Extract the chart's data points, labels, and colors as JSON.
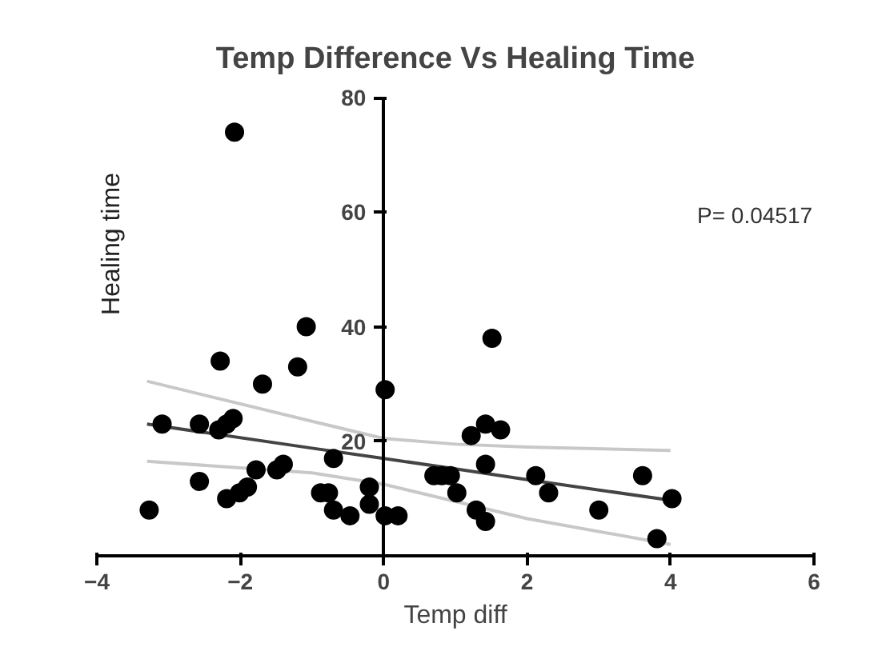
{
  "chart_data": {
    "type": "scatter",
    "title": "Temp Difference Vs Healing Time",
    "xlabel": "Temp diff",
    "ylabel": "Healing time",
    "annotations": [
      "P= 0.04517"
    ],
    "xlim": [
      -4,
      6
    ],
    "xticks": [
      -4,
      -2,
      0,
      2,
      4,
      6
    ],
    "ylim": [
      0,
      80
    ],
    "yticks": [
      20,
      40,
      60,
      80
    ],
    "grid": false,
    "series": [
      {
        "type": "scatter",
        "marker": "circle",
        "color": "#000000",
        "x": [
          -3.27,
          -3.09,
          -2.57,
          -2.57,
          -2.28,
          -2.3,
          -2.19,
          -2.1,
          -2.08,
          -2.19,
          -2.01,
          -1.9,
          -1.78,
          -1.69,
          -1.49,
          -1.4,
          -1.2,
          -1.08,
          -0.88,
          -0.77,
          -0.7,
          -0.7,
          -0.47,
          -0.2,
          -0.2,
          0.02,
          0.02,
          0.2,
          0.7,
          0.81,
          0.93,
          1.02,
          1.22,
          1.42,
          1.63,
          1.42,
          1.29,
          1.42,
          1.51,
          2.12,
          2.3,
          3.0,
          3.61,
          4.02,
          3.81
        ],
        "values": [
          8,
          23,
          23,
          13,
          34,
          22,
          23,
          24,
          74,
          10,
          11,
          12,
          15,
          30,
          15,
          16,
          33,
          40,
          11,
          11,
          17,
          8,
          7,
          12,
          9,
          29,
          7,
          7,
          14,
          14,
          14,
          11,
          21,
          23,
          22,
          16,
          8,
          6,
          38,
          14,
          11,
          8,
          14,
          10,
          3
        ]
      },
      {
        "type": "line",
        "color": "#444444",
        "x": [
          -3.3,
          -1,
          0,
          1,
          2,
          4
        ],
        "values": [
          23,
          18.8,
          17,
          15.2,
          13.3,
          9.7
        ]
      },
      {
        "type": "line",
        "color": "#c8c8c8",
        "x": [
          -3.3,
          -1,
          0,
          1,
          2,
          4
        ],
        "values": [
          30.5,
          23.5,
          20.5,
          19.5,
          19,
          18.4
        ]
      },
      {
        "type": "line",
        "color": "#c8c8c8",
        "x": [
          -3.3,
          -1,
          0,
          1,
          2,
          4
        ],
        "values": [
          16.5,
          14.5,
          12.5,
          9.5,
          6.5,
          2
        ]
      }
    ]
  }
}
